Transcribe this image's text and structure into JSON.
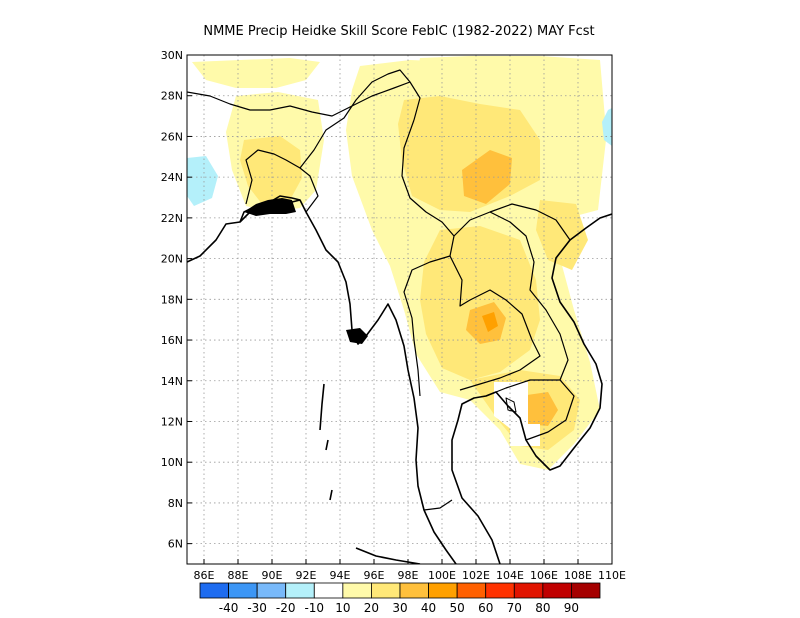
{
  "title": "NMME Precip Heidke Skill Score FebIC (1982-2022) MAY Fcst",
  "chart_data": {
    "type": "heatmap",
    "title": "NMME Precip Heidke Skill Score FebIC (1982-2022) MAY Fcst",
    "x_ticks": [
      "86E",
      "88E",
      "90E",
      "92E",
      "94E",
      "96E",
      "98E",
      "100E",
      "102E",
      "104E",
      "106E",
      "108E",
      "110E"
    ],
    "y_ticks": [
      "30N",
      "28N",
      "26N",
      "24N",
      "22N",
      "20N",
      "18N",
      "16N",
      "14N",
      "12N",
      "10N",
      "8N",
      "6N"
    ],
    "x_range": [
      85,
      110
    ],
    "y_range": [
      5,
      30
    ],
    "grid": true,
    "colorbar": {
      "labels": [
        "-40",
        "-30",
        "-20",
        "-10",
        "10",
        "20",
        "30",
        "40",
        "50",
        "60",
        "70",
        "80",
        "90"
      ],
      "colors": [
        "#1e6cf0",
        "#3c96f5",
        "#78b9fa",
        "#b4f0fa",
        "#ffffff",
        "#fffaaa",
        "#ffe878",
        "#ffc03c",
        "#ffa000",
        "#ff6000",
        "#ff3200",
        "#e11400",
        "#c00000",
        "#a50000"
      ]
    },
    "regions": [
      {
        "lon": 88,
        "lat": 26,
        "w": 4,
        "h": 2,
        "value": 20
      },
      {
        "lon": 89,
        "lat": 24,
        "w": 3,
        "h": 2,
        "value": 20
      },
      {
        "lon": 90,
        "lat": 22,
        "w": 2,
        "h": 2,
        "value": 20
      },
      {
        "lon": 96,
        "lat": 26,
        "w": 4,
        "h": 4,
        "value": 10
      },
      {
        "lon": 98,
        "lat": 24,
        "w": 8,
        "h": 4,
        "value": 20
      },
      {
        "lon": 100,
        "lat": 23,
        "w": 4,
        "h": 2,
        "value": 30
      },
      {
        "lon": 99,
        "lat": 18,
        "w": 6,
        "h": 4,
        "value": 20
      },
      {
        "lon": 101,
        "lat": 16,
        "w": 3,
        "h": 2,
        "value": 30
      },
      {
        "lon": 100,
        "lat": 13,
        "w": 6,
        "h": 3,
        "value": 20
      },
      {
        "lon": 105,
        "lat": 12,
        "w": 2,
        "h": 2,
        "value": 30
      },
      {
        "lon": 86,
        "lat": 23.5,
        "w": 2,
        "h": 2,
        "value": -10
      },
      {
        "lon": 109.5,
        "lat": 26,
        "w": 0.5,
        "h": 1.5,
        "value": -10
      }
    ]
  }
}
